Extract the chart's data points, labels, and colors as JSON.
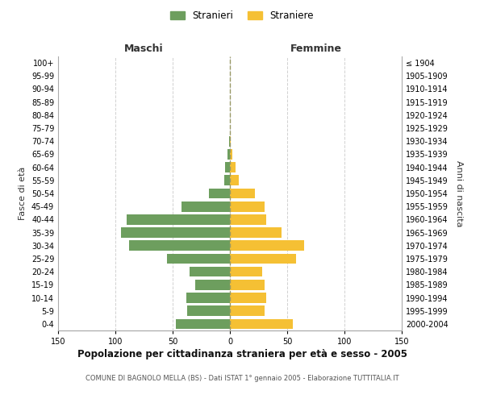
{
  "age_groups": [
    "0-4",
    "5-9",
    "10-14",
    "15-19",
    "20-24",
    "25-29",
    "30-34",
    "35-39",
    "40-44",
    "45-49",
    "50-54",
    "55-59",
    "60-64",
    "65-69",
    "70-74",
    "75-79",
    "80-84",
    "85-89",
    "90-94",
    "95-99",
    "100+"
  ],
  "birth_years": [
    "2000-2004",
    "1995-1999",
    "1990-1994",
    "1985-1989",
    "1980-1984",
    "1975-1979",
    "1970-1974",
    "1965-1969",
    "1960-1964",
    "1955-1959",
    "1950-1954",
    "1945-1949",
    "1940-1944",
    "1935-1939",
    "1930-1934",
    "1925-1929",
    "1920-1924",
    "1915-1919",
    "1910-1914",
    "1905-1909",
    "≤ 1904"
  ],
  "maschi": [
    47,
    37,
    38,
    30,
    35,
    55,
    88,
    95,
    90,
    42,
    18,
    5,
    4,
    2,
    1,
    0,
    0,
    0,
    0,
    0,
    0
  ],
  "femmine": [
    55,
    30,
    32,
    30,
    28,
    58,
    65,
    45,
    32,
    30,
    22,
    8,
    5,
    2,
    1,
    0,
    0,
    0,
    0,
    0,
    0
  ],
  "male_color": "#6d9e5e",
  "female_color": "#f5c034",
  "title": "Popolazione per cittadinanza straniera per età e sesso - 2005",
  "subtitle": "COMUNE DI BAGNOLO MELLA (BS) - Dati ISTAT 1° gennaio 2005 - Elaborazione TUTTITALIA.IT",
  "xlabel_left": "Maschi",
  "xlabel_right": "Femmine",
  "ylabel_left": "Fasce di età",
  "ylabel_right": "Anni di nascita",
  "legend_male": "Stranieri",
  "legend_female": "Straniere",
  "xlim": 150,
  "background_color": "#ffffff",
  "grid_color": "#cccccc"
}
